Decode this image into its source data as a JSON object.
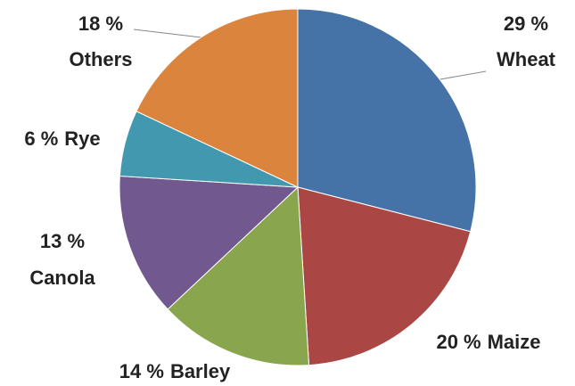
{
  "chart_data": {
    "type": "pie",
    "categories": [
      "Wheat",
      "Maize",
      "Barley",
      "Canola",
      "Rye",
      "Others"
    ],
    "values": [
      29,
      20,
      14,
      13,
      6,
      18
    ],
    "value_labels": [
      "29 %",
      "20 %",
      "14 %",
      "13 %",
      "6 %",
      "18 %"
    ],
    "colors": [
      "#4572a7",
      "#aa4643",
      "#89a54e",
      "#71588f",
      "#4198af",
      "#db843d"
    ]
  }
}
